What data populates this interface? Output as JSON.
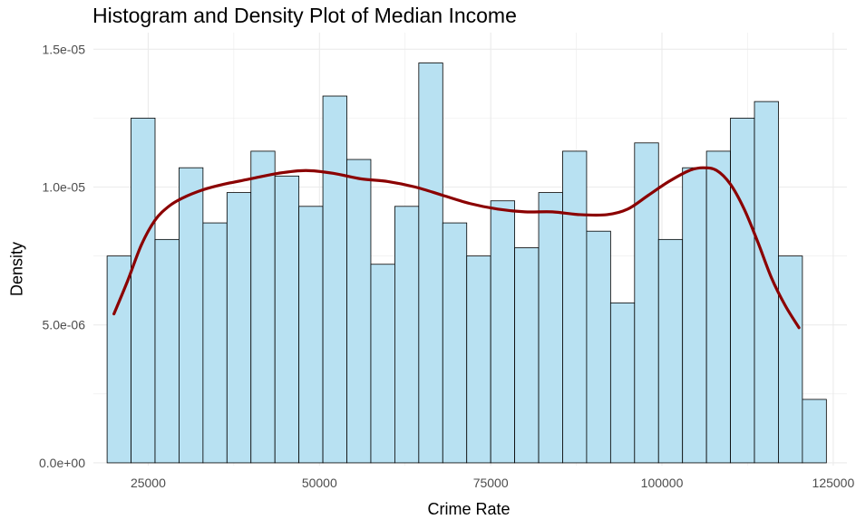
{
  "chart_data": {
    "type": "bar",
    "title": "Histogram and Density Plot of Median Income",
    "xlabel": "Crime Rate",
    "ylabel": "Density",
    "xlim": [
      17000,
      127000
    ],
    "ylim": [
      -1e-07,
      1.56e-05
    ],
    "x_ticks": [
      25000,
      50000,
      75000,
      100000,
      125000
    ],
    "x_tick_labels": [
      "25000",
      "50000",
      "75000",
      "100000",
      "125000"
    ],
    "y_ticks": [
      0,
      5e-06,
      1e-05,
      1.5e-05
    ],
    "y_tick_labels": [
      "0.0e+00",
      "5.0e-06",
      "1.0e-05",
      "1.5e-05"
    ],
    "grid": true,
    "bin_width": 3500,
    "bin_start": 19000,
    "histogram": [
      7.5e-06,
      1.25e-05,
      8.1e-06,
      1.07e-05,
      8.7e-06,
      9.8e-06,
      1.13e-05,
      1.04e-05,
      9.3e-06,
      1.33e-05,
      1.1e-05,
      7.2e-06,
      9.3e-06,
      1.45e-05,
      8.7e-06,
      7.5e-06,
      9.5e-06,
      7.8e-06,
      9.8e-06,
      1.13e-05,
      8.4e-06,
      5.8e-06,
      1.16e-05,
      8.1e-06,
      1.07e-05,
      1.13e-05,
      1.25e-05,
      1.31e-05,
      7.5e-06,
      2.3e-06
    ],
    "density": {
      "x": [
        20000,
        22000,
        24000,
        26000,
        28000,
        30000,
        33000,
        36000,
        40000,
        44000,
        48000,
        52000,
        56000,
        60000,
        64000,
        68000,
        72000,
        76000,
        80000,
        84000,
        88000,
        92000,
        95000,
        98000,
        101000,
        104000,
        106000,
        108000,
        110000,
        112000,
        114000,
        116000,
        118000,
        120000
      ],
      "y": [
        5.4e-06,
        6.6e-06,
        7.9e-06,
        8.8e-06,
        9.3e-06,
        9.6e-06,
        9.9e-06,
        1.01e-05,
        1.03e-05,
        1.05e-05,
        1.06e-05,
        1.05e-05,
        1.03e-05,
        1.02e-05,
        1e-05,
        9.7e-06,
        9.4e-06,
        9.2e-06,
        9.1e-06,
        9.1e-06,
        9e-06,
        9e-06,
        9.2e-06,
        9.7e-06,
        1.02e-05,
        1.06e-05,
        1.07e-05,
        1.06e-05,
        1.01e-05,
        9.2e-06,
        8e-06,
        6.7e-06,
        5.7e-06,
        4.9e-06
      ]
    },
    "colors": {
      "bar_fill": "#b8e1f2",
      "bar_stroke": "#000000",
      "density_line": "#8b0000",
      "grid": "#ebebeb"
    }
  }
}
